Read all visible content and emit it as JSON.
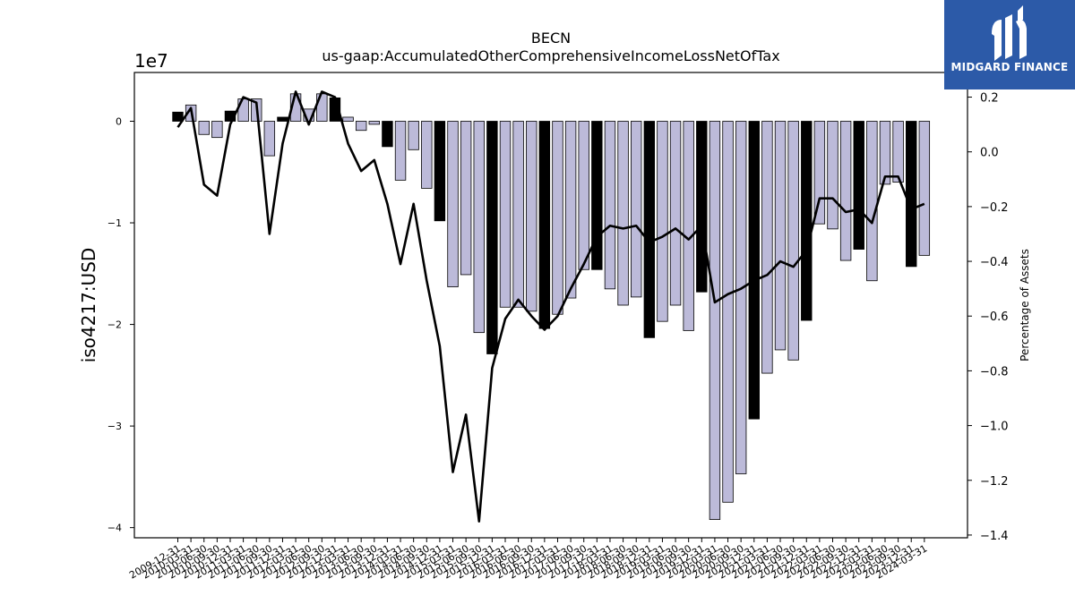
{
  "chart_data": {
    "type": "bar",
    "title": "BECN",
    "subtitle": "us-gaap:AccumulatedOtherComprehensiveIncomeLossNetOfTax",
    "ylabel": "iso4217:USD",
    "y2label": "Percentage of Assets",
    "y_exponent_label": "1e7",
    "ylim": [
      -41000000,
      4800000
    ],
    "y2lim": [
      -1.41,
      0.29
    ],
    "yticks": [
      0,
      -10000000,
      -20000000,
      -30000000,
      -40000000
    ],
    "yticklabels": [
      "0",
      "−1",
      "−2",
      "−3",
      "−4"
    ],
    "y2ticks": [
      0.2,
      0.0,
      -0.2,
      -0.4,
      -0.6,
      -0.8,
      -1.0,
      -1.2,
      -1.4
    ],
    "y2ticklabels": [
      "0.2",
      "0.0",
      "−0.2",
      "−0.4",
      "−0.6",
      "−0.8",
      "−1.0",
      "−1.2",
      "−1.4"
    ],
    "colors": {
      "annual_bar": "#000000",
      "quarter_bar": "#bcbad9",
      "line": "#000000"
    },
    "categories": [
      "2009-12-31",
      "2010-03-31",
      "2010-06-30",
      "2010-09-30",
      "2010-12-31",
      "2011-03-31",
      "2011-06-30",
      "2011-09-30",
      "2011-12-31",
      "2012-03-31",
      "2012-06-30",
      "2012-09-30",
      "2012-12-31",
      "2013-03-31",
      "2013-06-30",
      "2013-09-30",
      "2013-12-31",
      "2014-03-31",
      "2014-06-30",
      "2014-09-30",
      "2014-12-31",
      "2015-03-31",
      "2015-06-30",
      "2015-09-30",
      "2015-12-31",
      "2016-03-31",
      "2016-06-30",
      "2016-09-30",
      "2016-12-31",
      "2017-03-31",
      "2017-06-30",
      "2017-09-30",
      "2017-12-31",
      "2018-03-31",
      "2018-06-30",
      "2018-09-30",
      "2018-12-31",
      "2019-03-31",
      "2019-06-30",
      "2019-09-30",
      "2019-12-31",
      "2020-03-31",
      "2020-06-30",
      "2020-09-30",
      "2020-12-31",
      "2021-03-31",
      "2021-06-30",
      "2021-09-30",
      "2021-12-31",
      "2022-03-31",
      "2022-06-30",
      "2022-09-30",
      "2022-12-31",
      "2023-03-31",
      "2023-06-30",
      "2023-09-30",
      "2023-12-31",
      "2024-03-31"
    ],
    "annual_flags": [
      1,
      0,
      0,
      0,
      1,
      0,
      0,
      0,
      1,
      0,
      0,
      0,
      1,
      0,
      0,
      0,
      1,
      0,
      0,
      0,
      1,
      0,
      0,
      0,
      1,
      0,
      0,
      0,
      1,
      0,
      0,
      0,
      1,
      0,
      0,
      0,
      1,
      0,
      0,
      0,
      1,
      0,
      0,
      0,
      1,
      0,
      0,
      0,
      1,
      0,
      0,
      0,
      1,
      0,
      0,
      0,
      1,
      0
    ],
    "series": [
      {
        "name": "iso4217:USD",
        "type": "bar",
        "axis": "left",
        "values": [
          900000,
          1600000,
          -1300000,
          -1600000,
          1000000,
          2200000,
          2200000,
          -3400000,
          400000,
          2700000,
          1200000,
          2700000,
          2300000,
          400000,
          -900000,
          -300000,
          -2500000,
          -5800000,
          -2800000,
          -6600000,
          -9800000,
          -16300000,
          -15100000,
          -20800000,
          -22900000,
          -18300000,
          -18300000,
          -18700000,
          -20400000,
          -19000000,
          -17400000,
          -14600000,
          -14600000,
          -16500000,
          -18100000,
          -17300000,
          -21300000,
          -19700000,
          -18100000,
          -20600000,
          -16800000,
          -39200000,
          -37500000,
          -34700000,
          -29300000,
          -24800000,
          -22500000,
          -23500000,
          -19600000,
          -10100000,
          -10600000,
          -13700000,
          -12600000,
          -15700000,
          -6200000,
          -6000000,
          -14300000,
          -13200000
        ]
      },
      {
        "name": "Percentage of Assets",
        "type": "line",
        "axis": "right",
        "values": [
          0.09,
          0.16,
          -0.12,
          -0.16,
          0.1,
          0.2,
          0.18,
          -0.3,
          0.03,
          0.22,
          0.1,
          0.22,
          0.2,
          0.03,
          -0.07,
          -0.03,
          -0.19,
          -0.41,
          -0.19,
          -0.47,
          -0.71,
          -1.17,
          -0.96,
          -1.35,
          -0.79,
          -0.61,
          -0.54,
          -0.6,
          -0.65,
          -0.6,
          -0.5,
          -0.41,
          -0.31,
          -0.27,
          -0.28,
          -0.27,
          -0.33,
          -0.31,
          -0.28,
          -0.32,
          -0.27,
          -0.55,
          -0.52,
          -0.5,
          -0.47,
          -0.45,
          -0.4,
          -0.42,
          -0.36,
          -0.17,
          -0.17,
          -0.22,
          -0.21,
          -0.26,
          -0.09,
          -0.09,
          -0.21,
          -0.19
        ]
      }
    ]
  },
  "logo": {
    "text": "MIDGARD FINANCE"
  }
}
